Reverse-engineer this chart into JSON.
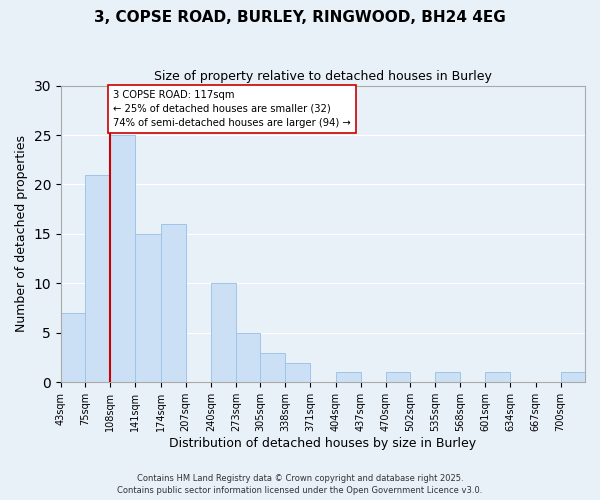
{
  "title": "3, COPSE ROAD, BURLEY, RINGWOOD, BH24 4EG",
  "subtitle": "Size of property relative to detached houses in Burley",
  "xlabel": "Distribution of detached houses by size in Burley",
  "ylabel": "Number of detached properties",
  "bin_labels": [
    "43sqm",
    "75sqm",
    "108sqm",
    "141sqm",
    "174sqm",
    "207sqm",
    "240sqm",
    "273sqm",
    "305sqm",
    "338sqm",
    "371sqm",
    "404sqm",
    "437sqm",
    "470sqm",
    "502sqm",
    "535sqm",
    "568sqm",
    "601sqm",
    "634sqm",
    "667sqm",
    "700sqm"
  ],
  "bin_edges": [
    43,
    75,
    108,
    141,
    174,
    207,
    240,
    273,
    305,
    338,
    371,
    404,
    437,
    470,
    502,
    535,
    568,
    601,
    634,
    667,
    700
  ],
  "counts": [
    7,
    21,
    25,
    15,
    16,
    0,
    10,
    5,
    3,
    2,
    0,
    1,
    0,
    1,
    0,
    1,
    0,
    1,
    0,
    0,
    1
  ],
  "bar_color": "#cce0f5",
  "bar_edge_color": "#a0c4e8",
  "vline_x": 108,
  "vline_color": "#cc0000",
  "annotation_title": "3 COPSE ROAD: 117sqm",
  "annotation_line1": "← 25% of detached houses are smaller (32)",
  "annotation_line2": "74% of semi-detached houses are larger (94) →",
  "annotation_box_color": "#ffffff",
  "annotation_box_edge_color": "#cc0000",
  "ylim": [
    0,
    30
  ],
  "yticks": [
    0,
    5,
    10,
    15,
    20,
    25,
    30
  ],
  "bg_color": "#e8f0f8",
  "plot_bg_color": "#e8f0f8",
  "footer_line1": "Contains HM Land Registry data © Crown copyright and database right 2025.",
  "footer_line2": "Contains public sector information licensed under the Open Government Licence v3.0."
}
